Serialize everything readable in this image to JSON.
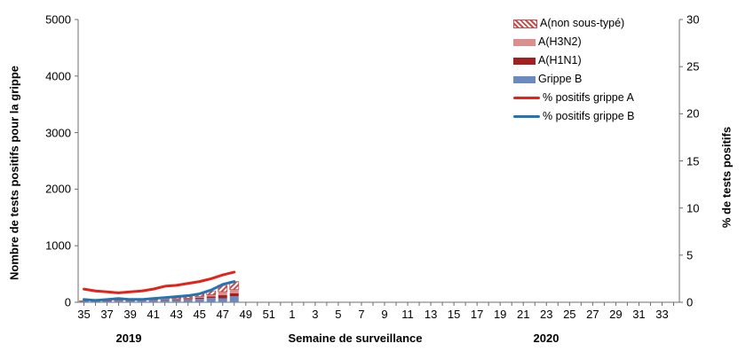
{
  "figure": {
    "y_left_title": "Nombre de tests positifs pour la grippe",
    "y_right_title": "% de tests positifs",
    "x_title": "Semaine de surveillance",
    "year_left": "2019",
    "year_right": "2020"
  },
  "legend": {
    "items": [
      {
        "label": "A(non sous-typé)",
        "swatch": "hatched",
        "color": "#c0504d"
      },
      {
        "label": "A(H3N2)",
        "swatch": "solid",
        "color": "#d9908f"
      },
      {
        "label": "A(H1N1)",
        "swatch": "solid",
        "color": "#a32020"
      },
      {
        "label": "Grippe B",
        "swatch": "solid",
        "color": "#6b8abf"
      },
      {
        "label": "% positifs grippe A",
        "swatch": "line",
        "color": "#e2231a"
      },
      {
        "label": "% positifs grippe B",
        "swatch": "line",
        "color": "#2274b5"
      }
    ]
  },
  "chart_data": {
    "type": "combo-stacked-bar-line",
    "x_axis": {
      "weeks": [
        "35",
        "36",
        "37",
        "38",
        "39",
        "40",
        "41",
        "42",
        "43",
        "44",
        "45",
        "46",
        "47",
        "48",
        "49",
        "50",
        "51",
        "52",
        "1",
        "2",
        "3",
        "4",
        "5",
        "6",
        "7",
        "8",
        "9",
        "10",
        "11",
        "12",
        "13",
        "14",
        "15",
        "16",
        "17",
        "18",
        "19",
        "20",
        "21",
        "22",
        "23",
        "24",
        "25",
        "26",
        "27",
        "28",
        "29",
        "30",
        "31",
        "32",
        "33",
        "34"
      ],
      "label_every": 2,
      "tick_labels_shown": [
        "35",
        "37",
        "39",
        "41",
        "43",
        "45",
        "47",
        "49",
        "51",
        "1",
        "3",
        "5",
        "7",
        "9",
        "11",
        "13",
        "15",
        "17",
        "19",
        "21",
        "23",
        "25",
        "27",
        "29",
        "31",
        "33"
      ]
    },
    "y_left": {
      "min": 0,
      "max": 5000,
      "step": 1000,
      "ticks": [
        "0",
        "1000",
        "2000",
        "3000",
        "4000",
        "5000"
      ]
    },
    "y_right": {
      "min": 0,
      "max": 30,
      "step": 5,
      "ticks": [
        "0",
        "5",
        "10",
        "15",
        "20",
        "25",
        "30"
      ]
    },
    "bars_weeks": [
      "35",
      "36",
      "37",
      "38",
      "39",
      "40",
      "41",
      "42",
      "43",
      "44",
      "45",
      "46",
      "47",
      "48"
    ],
    "bar_series_bottom_to_top": [
      {
        "name": "Grippe B",
        "color": "#6b8abf",
        "style": "solid",
        "values": [
          15,
          12,
          15,
          25,
          18,
          22,
          30,
          40,
          40,
          45,
          60,
          75,
          70,
          105
        ]
      },
      {
        "name": "A(H1N1)",
        "color": "#a32020",
        "style": "solid",
        "values": [
          3,
          2,
          3,
          4,
          4,
          5,
          7,
          10,
          12,
          13,
          20,
          28,
          55,
          52
        ]
      },
      {
        "name": "A(H3N2)",
        "color": "#d9908f",
        "style": "solid",
        "values": [
          3,
          3,
          3,
          5,
          4,
          5,
          8,
          12,
          13,
          14,
          22,
          30,
          63,
          68
        ]
      },
      {
        "name": "A(non sous-typé)",
        "color": "#c0504d",
        "style": "hatched",
        "values": [
          4,
          3,
          4,
          6,
          4,
          8,
          15,
          28,
          25,
          28,
          48,
          67,
          110,
          140
        ]
      }
    ],
    "line_series": [
      {
        "name": "% positifs grippe A",
        "color": "#e2231a",
        "axis": "right",
        "values": [
          1.4,
          1.2,
          1.1,
          1.0,
          1.1,
          1.2,
          1.4,
          1.7,
          1.8,
          2.0,
          2.2,
          2.5,
          2.9,
          3.2
        ]
      },
      {
        "name": "% positifs grippe B",
        "color": "#2274b5",
        "axis": "right",
        "values": [
          0.3,
          0.2,
          0.3,
          0.4,
          0.3,
          0.3,
          0.4,
          0.5,
          0.6,
          0.7,
          0.9,
          1.3,
          1.9,
          2.2
        ]
      }
    ],
    "axis_color": "#6e6e6e",
    "grid": false,
    "legend_position": "top-right-inside"
  }
}
